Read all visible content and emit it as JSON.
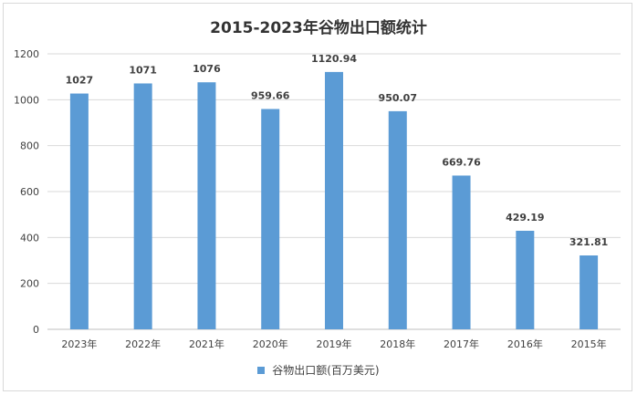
{
  "chart_data": {
    "type": "bar",
    "title": "2015-2023年谷物出口额统计",
    "categories": [
      "2023年",
      "2022年",
      "2021年",
      "2020年",
      "2019年",
      "2018年",
      "2017年",
      "2016年",
      "2015年"
    ],
    "series": [
      {
        "name": "谷物出口额(百万美元)",
        "values": [
          1027,
          1071,
          1076,
          959.66,
          1120.94,
          950.07,
          669.76,
          429.19,
          321.81
        ],
        "labels": [
          "1027",
          "1071",
          "1076",
          "959.66",
          "1120.94",
          "950.07",
          "669.76",
          "429.19",
          "321.81"
        ]
      }
    ],
    "ylim": [
      0,
      1200
    ],
    "yticks": [
      0,
      200,
      400,
      600,
      800,
      1000,
      1200
    ],
    "grid": true,
    "legend_position": "bottom",
    "bar_color": "#5b9bd5"
  }
}
